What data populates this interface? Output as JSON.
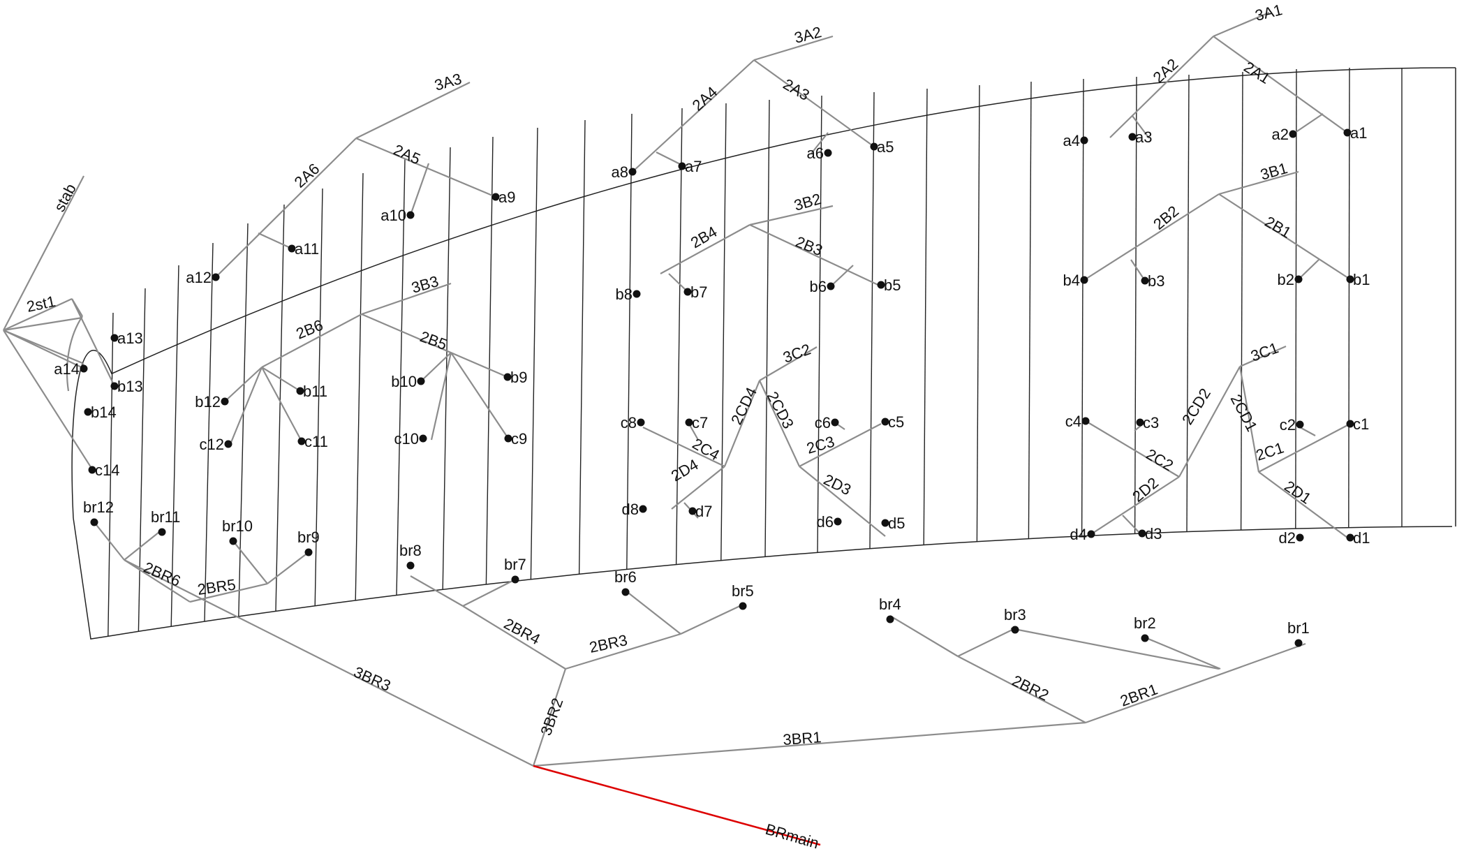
{
  "colors": {
    "background": "#ffffff",
    "outline": "#222222",
    "branch": "#8c8c8c",
    "node": "#111111",
    "main_trunk": "#dd0000"
  },
  "rib_count": 29,
  "nodes": {
    "a1": "a1",
    "a2": "a2",
    "a3": "a3",
    "a4": "a4",
    "a5": "a5",
    "a6": "a6",
    "a7": "a7",
    "a8": "a8",
    "a9": "a9",
    "a10": "a10",
    "a11": "a11",
    "a12": "a12",
    "a13": "a13",
    "a14": "a14",
    "b1": "b1",
    "b2": "b2",
    "b3": "b3",
    "b4": "b4",
    "b5": "b5",
    "b6": "b6",
    "b7": "b7",
    "b8": "b8",
    "b9": "b9",
    "b10": "b10",
    "b11": "b11",
    "b12": "b12",
    "b13": "b13",
    "b14": "b14",
    "c1": "c1",
    "c2": "c2",
    "c3": "c3",
    "c4": "c4",
    "c5": "c5",
    "c6": "c6",
    "c7": "c7",
    "c8": "c8",
    "c9": "c9",
    "c10": "c10",
    "c11": "c11",
    "c12": "c12",
    "c14": "c14",
    "d1": "d1",
    "d2": "d2",
    "d3": "d3",
    "d4": "d4",
    "d5": "d5",
    "d6": "d6",
    "d7": "d7",
    "d8": "d8",
    "br1": "br1",
    "br2": "br2",
    "br3": "br3",
    "br4": "br4",
    "br5": "br5",
    "br6": "br6",
    "br7": "br7",
    "br8": "br8",
    "br9": "br9",
    "br10": "br10",
    "br11": "br11",
    "br12": "br12"
  },
  "branches": {
    "3A1": "3A1",
    "3A2": "3A2",
    "3A3": "3A3",
    "2A1": "2A1",
    "2A2": "2A2",
    "2A3": "2A3",
    "2A4": "2A4",
    "2A5": "2A5",
    "2A6": "2A6",
    "3B1": "3B1",
    "3B2": "3B2",
    "3B3": "3B3",
    "2B1": "2B1",
    "2B2": "2B2",
    "2B3": "2B3",
    "2B4": "2B4",
    "2B5": "2B5",
    "2B6": "2B6",
    "3C1": "3C1",
    "3C2": "3C2",
    "2CD1": "2CD1",
    "2CD2": "2CD2",
    "2CD3": "2CD3",
    "2CD4": "2CD4",
    "2C1": "2C1",
    "2C2": "2C2",
    "2C3": "2C3",
    "2C4": "2C4",
    "2D1": "2D1",
    "2D2": "2D2",
    "2D3": "2D3",
    "2D4": "2D4",
    "2BR1": "2BR1",
    "2BR2": "2BR2",
    "2BR3": "2BR3",
    "2BR4": "2BR4",
    "2BR5": "2BR5",
    "2BR6": "2BR6",
    "3BR1": "3BR1",
    "3BR2": "3BR2",
    "3BR3": "3BR3",
    "stab": "stab",
    "2st1": "2st1",
    "BRmain": "BRmain"
  }
}
